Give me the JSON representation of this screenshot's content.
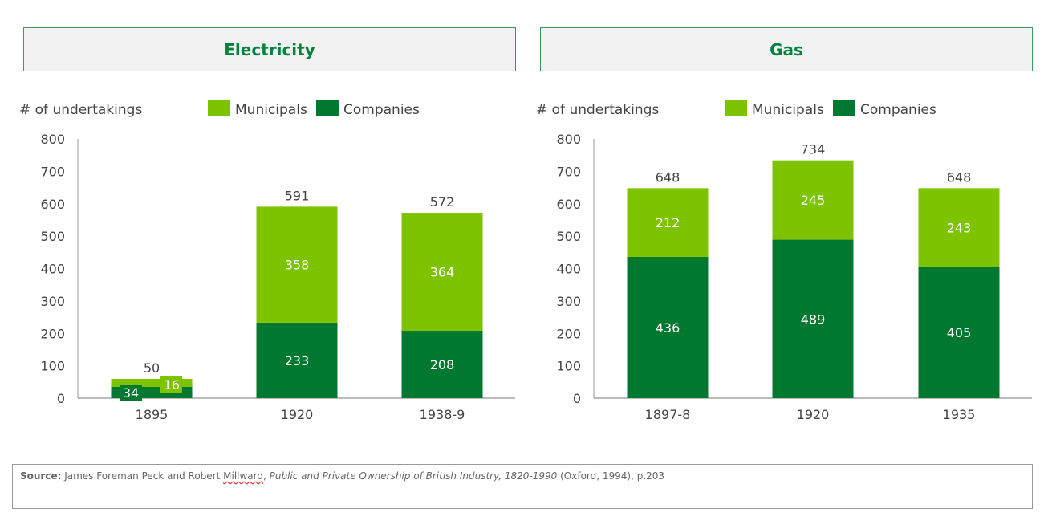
{
  "colors": {
    "companies": "#00782f",
    "municipals": "#7dc300",
    "axis": "#555555",
    "text": "#444444"
  },
  "chart_data": [
    {
      "type": "bar",
      "stacked": true,
      "title": "Electricity",
      "ylabel": "# of undertakings",
      "ylim": [
        0,
        800
      ],
      "yticks": [
        0,
        100,
        200,
        300,
        400,
        500,
        600,
        700,
        800
      ],
      "categories": [
        "1895",
        "1920",
        "1938-9"
      ],
      "series": [
        {
          "name": "Companies",
          "values": [
            34,
            233,
            208
          ]
        },
        {
          "name": "Municipals",
          "values": [
            16,
            358,
            364
          ]
        }
      ],
      "totals": [
        50,
        591,
        572
      ],
      "legend": [
        "Municipals",
        "Companies"
      ],
      "legend_position": "top"
    },
    {
      "type": "bar",
      "stacked": true,
      "title": "Gas",
      "ylabel": "# of undertakings",
      "ylim": [
        0,
        800
      ],
      "yticks": [
        0,
        100,
        200,
        300,
        400,
        500,
        600,
        700,
        800
      ],
      "categories": [
        "1897-8",
        "1920",
        "1935"
      ],
      "series": [
        {
          "name": "Companies",
          "values": [
            436,
            489,
            405
          ]
        },
        {
          "name": "Municipals",
          "values": [
            212,
            245,
            243
          ]
        }
      ],
      "totals": [
        648,
        734,
        648
      ],
      "legend": [
        "Municipals",
        "Companies"
      ],
      "legend_position": "top"
    }
  ],
  "source": {
    "label": "Source:",
    "pre": " James Foreman Peck and Robert ",
    "underlined": "Millward",
    "comma": ", ",
    "title": "Public and Private Ownership of British Industry, 1820-1990",
    "post": " (Oxford, 1994), p.203"
  }
}
